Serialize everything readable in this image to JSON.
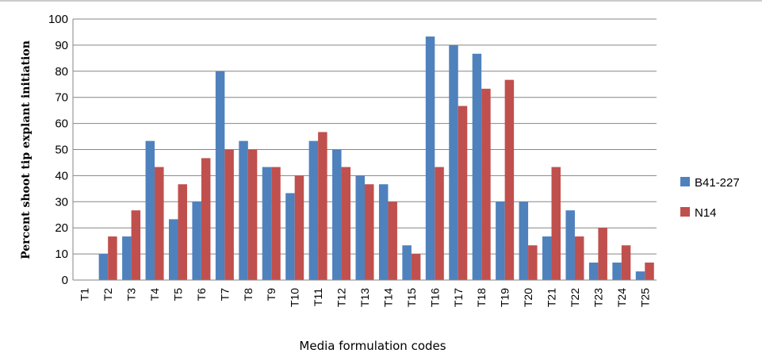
{
  "chart_data": {
    "type": "bar",
    "title": "",
    "xlabel": "Media formulation codes",
    "ylabel": "Percent shoot tip explant initiation",
    "ylim": [
      0,
      100
    ],
    "yticks": [
      0,
      10,
      20,
      30,
      40,
      50,
      60,
      70,
      80,
      90,
      100
    ],
    "grid": true,
    "legend_position": "right",
    "categories": [
      "T1",
      "T2",
      "T3",
      "T4",
      "T5",
      "T6",
      "T7",
      "T8",
      "T9",
      "T10",
      "T11",
      "T12",
      "T13",
      "T14",
      "T15",
      "T16",
      "T17",
      "T18",
      "T19",
      "T20",
      "T21",
      "T22",
      "T23",
      "T24",
      "T25"
    ],
    "series": [
      {
        "name": "B41-227",
        "color": "#4F81BD",
        "values": [
          0,
          10,
          16.7,
          53.3,
          23.3,
          30,
          80,
          53.3,
          43.3,
          33.3,
          53.3,
          50,
          40,
          36.7,
          13.3,
          93.3,
          90,
          86.7,
          30,
          30,
          16.7,
          26.7,
          6.7,
          6.7,
          3.3
        ]
      },
      {
        "name": "N14",
        "color": "#C0504D",
        "values": [
          0,
          16.7,
          26.7,
          43.3,
          36.7,
          46.7,
          50,
          50,
          43.3,
          40,
          56.7,
          43.3,
          36.7,
          30,
          10,
          43.3,
          66.7,
          73.3,
          76.7,
          13.3,
          43.3,
          16.7,
          20,
          13.3,
          6.7
        ]
      }
    ]
  }
}
